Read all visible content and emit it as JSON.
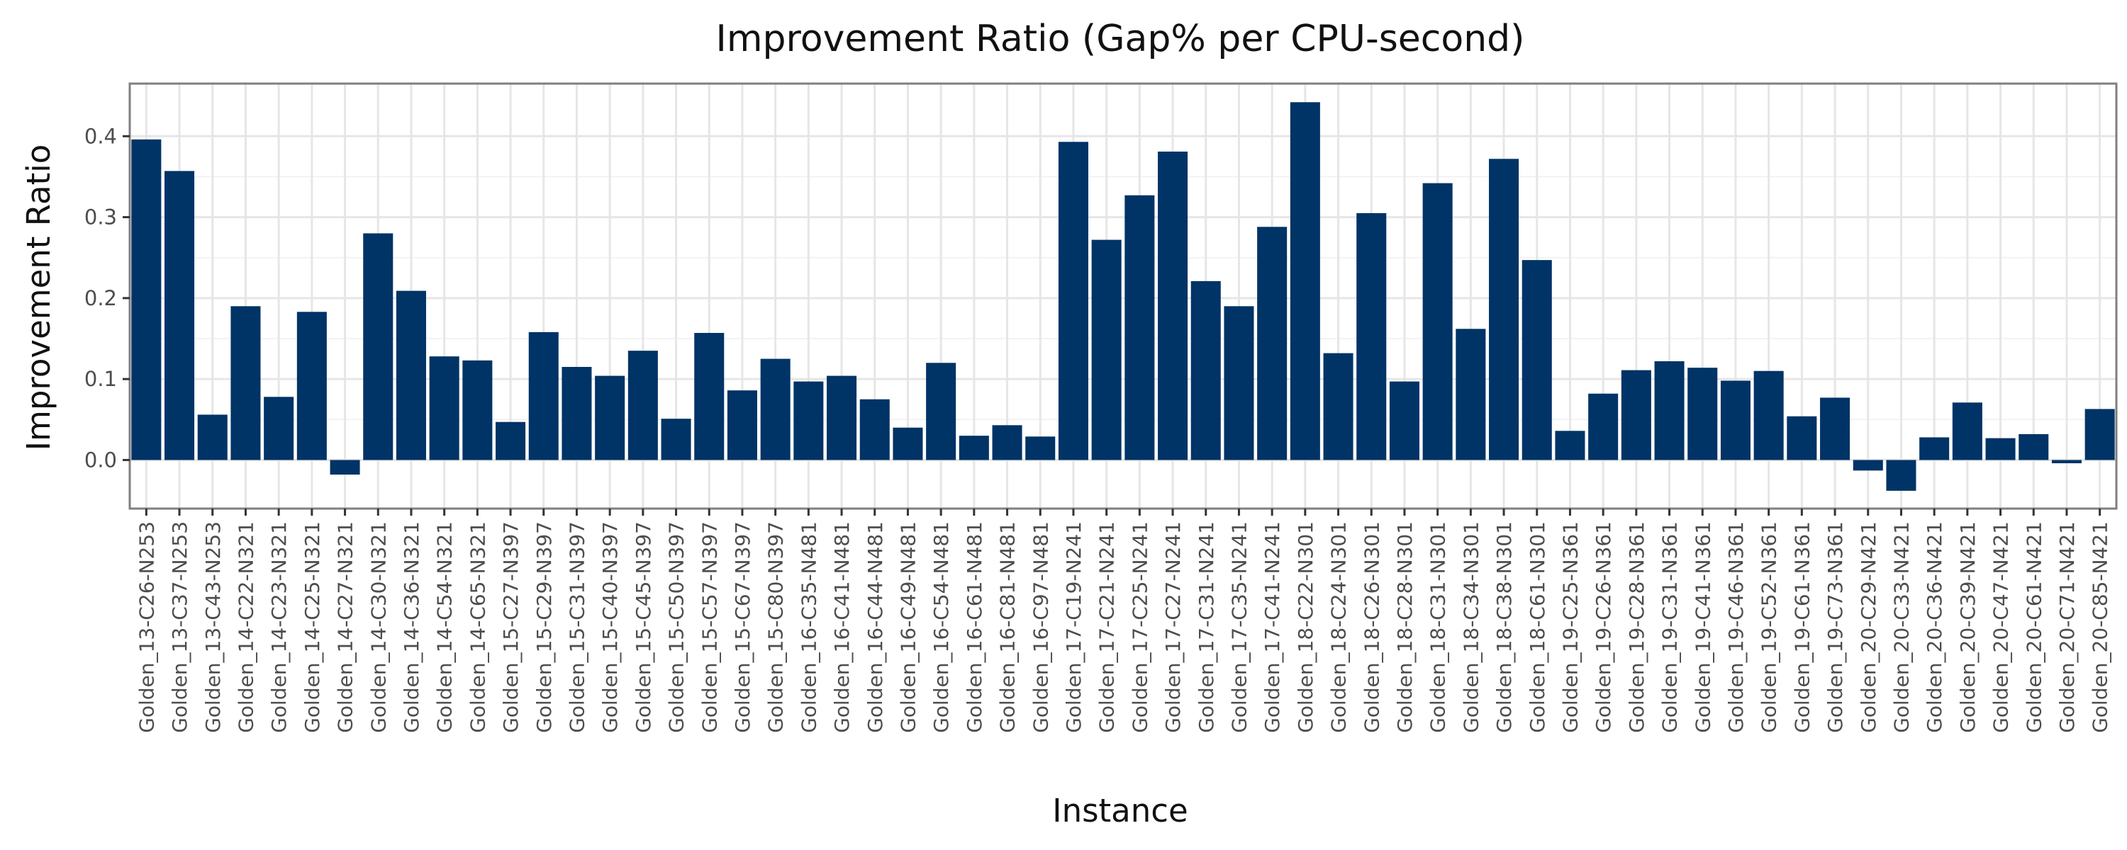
{
  "chart_data": {
    "type": "bar",
    "title": "Improvement Ratio (Gap% per CPU-second)",
    "xlabel": "Instance",
    "ylabel": "Improvement Ratio",
    "ylim": [
      -0.06,
      0.465
    ],
    "yticks": [
      0.0,
      0.1,
      0.2,
      0.3,
      0.4
    ],
    "ytick_labels": [
      "0.0",
      "0.1",
      "0.2",
      "0.3",
      "0.4"
    ],
    "grid": true,
    "legend": "none",
    "colors": {
      "bar": "#003366",
      "grid": "#e6e6e6",
      "panel_border": "#7f7f7f"
    },
    "categories": [
      "Golden_13-C26-N253",
      "Golden_13-C37-N253",
      "Golden_13-C43-N253",
      "Golden_14-C22-N321",
      "Golden_14-C23-N321",
      "Golden_14-C25-N321",
      "Golden_14-C27-N321",
      "Golden_14-C30-N321",
      "Golden_14-C36-N321",
      "Golden_14-C54-N321",
      "Golden_14-C65-N321",
      "Golden_15-C27-N397",
      "Golden_15-C29-N397",
      "Golden_15-C31-N397",
      "Golden_15-C40-N397",
      "Golden_15-C45-N397",
      "Golden_15-C50-N397",
      "Golden_15-C57-N397",
      "Golden_15-C67-N397",
      "Golden_15-C80-N397",
      "Golden_16-C35-N481",
      "Golden_16-C41-N481",
      "Golden_16-C44-N481",
      "Golden_16-C49-N481",
      "Golden_16-C54-N481",
      "Golden_16-C61-N481",
      "Golden_16-C81-N481",
      "Golden_16-C97-N481",
      "Golden_17-C19-N241",
      "Golden_17-C21-N241",
      "Golden_17-C25-N241",
      "Golden_17-C27-N241",
      "Golden_17-C31-N241",
      "Golden_17-C35-N241",
      "Golden_17-C41-N241",
      "Golden_18-C22-N301",
      "Golden_18-C24-N301",
      "Golden_18-C26-N301",
      "Golden_18-C28-N301",
      "Golden_18-C31-N301",
      "Golden_18-C34-N301",
      "Golden_18-C38-N301",
      "Golden_18-C61-N301",
      "Golden_19-C25-N361",
      "Golden_19-C26-N361",
      "Golden_19-C28-N361",
      "Golden_19-C31-N361",
      "Golden_19-C41-N361",
      "Golden_19-C46-N361",
      "Golden_19-C52-N361",
      "Golden_19-C61-N361",
      "Golden_19-C73-N361",
      "Golden_20-C29-N421",
      "Golden_20-C33-N421",
      "Golden_20-C36-N421",
      "Golden_20-C39-N421",
      "Golden_20-C47-N421",
      "Golden_20-C61-N421",
      "Golden_20-C71-N421",
      "Golden_20-C85-N421"
    ],
    "values": [
      0.396,
      0.357,
      0.056,
      0.19,
      0.078,
      0.183,
      -0.018,
      0.28,
      0.209,
      0.128,
      0.123,
      0.047,
      0.158,
      0.115,
      0.104,
      0.135,
      0.051,
      0.157,
      0.086,
      0.125,
      0.097,
      0.104,
      0.075,
      0.04,
      0.12,
      0.03,
      0.043,
      0.029,
      0.393,
      0.272,
      0.327,
      0.381,
      0.221,
      0.19,
      0.288,
      0.442,
      0.132,
      0.305,
      0.097,
      0.342,
      0.162,
      0.372,
      0.247,
      0.036,
      0.082,
      0.111,
      0.122,
      0.114,
      0.098,
      0.11,
      0.054,
      0.077,
      -0.013,
      -0.038,
      0.028,
      0.071,
      0.027,
      0.032,
      -0.004,
      0.063
    ]
  }
}
